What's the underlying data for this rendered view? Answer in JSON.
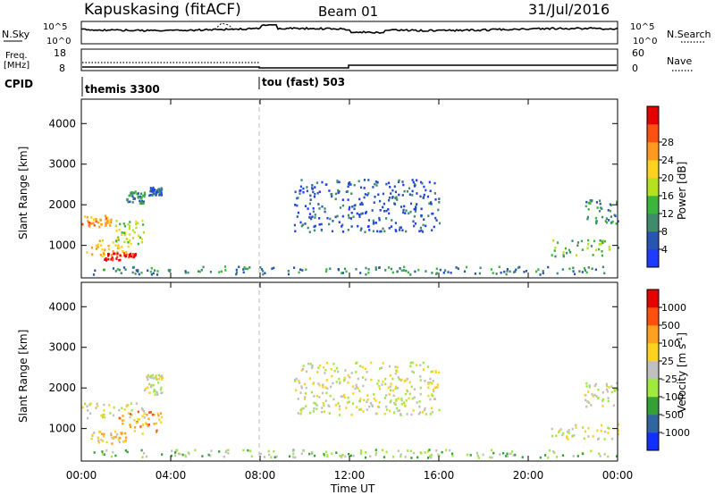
{
  "header": {
    "station": "Kapuskasing (fitACF)",
    "beam": "Beam 01",
    "date": "31/Jul/2016"
  },
  "noise_panel": {
    "left_label": "N.Sky",
    "left_ticks": [
      "10^5",
      "10^0"
    ],
    "right_ticks": [
      "10^5",
      "10^0"
    ],
    "right_label": "N.Search"
  },
  "freq_panel": {
    "left_label_top": "Freq.",
    "left_label_unit": "[MHz]",
    "left_ticks": [
      "18",
      "8"
    ],
    "right_ticks": [
      "60",
      "0"
    ],
    "right_label": "Nave"
  },
  "cpid": {
    "label": "CPID",
    "modes": [
      {
        "name": "themis 3300",
        "start_h": 0
      },
      {
        "name": "tou (fast) 503",
        "start_h": 8
      }
    ]
  },
  "chart_data": [
    {
      "type": "heatmap",
      "name": "power",
      "ylabel": "Slant Range [km]",
      "yticks": [
        "1000",
        "2000",
        "3000",
        "4000"
      ],
      "ylim": [
        200,
        4600
      ],
      "xlim": [
        0,
        24
      ],
      "xticks": [
        "00:00",
        "04:00",
        "08:00",
        "12:00",
        "16:00",
        "20:00",
        "00:00"
      ],
      "colorbar": {
        "label": "Power [dB]",
        "ticks": [
          "4",
          "8",
          "12",
          "16",
          "20",
          "24",
          "28"
        ],
        "colors": [
          "#1e3cff",
          "#2855b0",
          "#3f8b6b",
          "#3cb53c",
          "#b5e21c",
          "#ffd21e",
          "#ff9a1e",
          "#ff5014",
          "#e60000"
        ]
      },
      "regions": [
        {
          "t": [
            0.0,
            1.3
          ],
          "r": [
            1400,
            1700
          ],
          "level": 6
        },
        {
          "t": [
            0.2,
            2.2
          ],
          "r": [
            700,
            1100
          ],
          "level": 5
        },
        {
          "t": [
            1.0,
            2.4
          ],
          "r": [
            600,
            800
          ],
          "level": 8
        },
        {
          "t": [
            1.5,
            2.8
          ],
          "r": [
            1000,
            1600
          ],
          "level": 4
        },
        {
          "t": [
            2.0,
            2.8
          ],
          "r": [
            2000,
            2300
          ],
          "level": 2
        },
        {
          "t": [
            3.0,
            3.6
          ],
          "r": [
            2200,
            2400
          ],
          "level": 1
        },
        {
          "t": [
            0.5,
            24.0
          ],
          "r": [
            250,
            450
          ],
          "level": 2
        },
        {
          "t": [
            9.5,
            16.0
          ],
          "r": [
            1300,
            2600
          ],
          "level": 1
        },
        {
          "t": [
            21.0,
            24.0
          ],
          "r": [
            700,
            1100
          ],
          "level": 3
        },
        {
          "t": [
            22.5,
            24.0
          ],
          "r": [
            1500,
            2100
          ],
          "level": 2
        }
      ]
    },
    {
      "type": "heatmap",
      "name": "velocity",
      "ylabel": "Slant Range [km]",
      "yticks": [
        "1000",
        "2000",
        "3000",
        "4000"
      ],
      "ylim": [
        200,
        4600
      ],
      "xlim": [
        0,
        24
      ],
      "xticks": [
        "00:00",
        "04:00",
        "08:00",
        "12:00",
        "16:00",
        "20:00",
        "00:00"
      ],
      "xlabel": "Time UT",
      "colorbar": {
        "label": "Velocity [m s^-1]",
        "ticks": [
          "1000",
          "500",
          "100",
          "25",
          "-25",
          "-100",
          "-500",
          "-1000"
        ],
        "colors": [
          "#1030ff",
          "#2f65a0",
          "#35a035",
          "#a0ea40",
          "#c0c0c0",
          "#ffd21e",
          "#ffa01e",
          "#ff5010",
          "#e60000"
        ]
      },
      "regions": [
        {
          "t": [
            0.0,
            2.8
          ],
          "r": [
            1200,
            1600
          ],
          "level": 4
        },
        {
          "t": [
            0.3,
            2.0
          ],
          "r": [
            600,
            900
          ],
          "level": 5
        },
        {
          "t": [
            1.6,
            3.6
          ],
          "r": [
            800,
            1400
          ],
          "level": 6
        },
        {
          "t": [
            2.8,
            3.6
          ],
          "r": [
            1800,
            2300
          ],
          "level": 4
        },
        {
          "t": [
            0.5,
            24.0
          ],
          "r": [
            250,
            450
          ],
          "level": 3
        },
        {
          "t": [
            9.5,
            16.0
          ],
          "r": [
            1300,
            2600
          ],
          "level": 4
        },
        {
          "t": [
            21.0,
            24.0
          ],
          "r": [
            700,
            1100
          ],
          "level": 4
        },
        {
          "t": [
            22.5,
            24.0
          ],
          "r": [
            1500,
            2100
          ],
          "level": 4
        }
      ]
    }
  ]
}
